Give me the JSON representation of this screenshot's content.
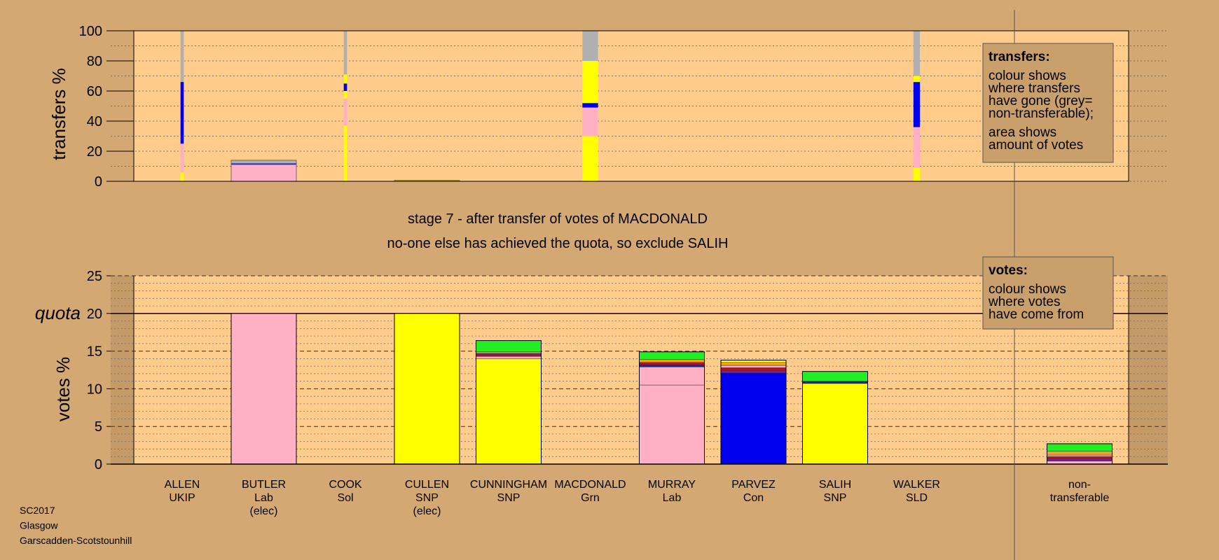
{
  "chart_data": [
    {
      "type": "bar",
      "id": "transfers",
      "ylabel": "transfers %",
      "ylim": [
        0,
        100
      ],
      "yticks": [
        0,
        20,
        40,
        60,
        80,
        100
      ],
      "grid": true,
      "note": {
        "title": "transfers:",
        "lines": [
          "colour shows",
          "where transfers",
          "have gone (grey=",
          "non-transferable);",
          "area shows",
          "amount of votes"
        ]
      },
      "columns": [
        {
          "candidate": "ALLEN",
          "relative_width": 0.05,
          "segments": [
            {
              "color": "#ffff00",
              "from": 0,
              "to": 6
            },
            {
              "color": "#ffb0c4",
              "from": 6,
              "to": 25
            },
            {
              "color": "#0000ee",
              "from": 25,
              "to": 66
            },
            {
              "color": "#b0b0b0",
              "from": 66,
              "to": 100
            }
          ]
        },
        {
          "candidate": "BUTLER",
          "relative_width": 1,
          "segments": [
            {
              "color": "#ffb0c4",
              "from": 0,
              "to": 11
            },
            {
              "color": "#2a2ab0",
              "from": 11,
              "to": 12
            },
            {
              "color": "#b0b0b0",
              "from": 12,
              "to": 14
            }
          ]
        },
        {
          "candidate": "COOK",
          "relative_width": 0.05,
          "segments": [
            {
              "color": "#ffff00",
              "from": 0,
              "to": 37
            },
            {
              "color": "#ffb0c4",
              "from": 37,
              "to": 55
            },
            {
              "color": "#ffff00",
              "from": 55,
              "to": 60
            },
            {
              "color": "#0000ee",
              "from": 60,
              "to": 65
            },
            {
              "color": "#ffff00",
              "from": 65,
              "to": 71
            },
            {
              "color": "#b0b0b0",
              "from": 71,
              "to": 100
            }
          ]
        },
        {
          "candidate": "CULLEN",
          "relative_width": 1,
          "segments": [
            {
              "color": "#d8c000",
              "from": 0,
              "to": 0.6
            }
          ]
        },
        {
          "candidate": "MACDONALD",
          "relative_width": 0.24,
          "segments": [
            {
              "color": "#ffff00",
              "from": 0,
              "to": 30
            },
            {
              "color": "#ffb0c4",
              "from": 30,
              "to": 49
            },
            {
              "color": "#0000ee",
              "from": 49,
              "to": 52
            },
            {
              "color": "#ffff00",
              "from": 52,
              "to": 80
            },
            {
              "color": "#b0b0b0",
              "from": 80,
              "to": 100
            }
          ]
        },
        {
          "candidate": "WALKER",
          "relative_width": 0.1,
          "segments": [
            {
              "color": "#ffff00",
              "from": 0,
              "to": 9
            },
            {
              "color": "#ffb0c4",
              "from": 9,
              "to": 36
            },
            {
              "color": "#0000ee",
              "from": 36,
              "to": 66
            },
            {
              "color": "#ffff00",
              "from": 66,
              "to": 70
            },
            {
              "color": "#b0b0b0",
              "from": 70,
              "to": 100
            }
          ]
        }
      ]
    },
    {
      "type": "bar",
      "id": "votes",
      "ylabel": "votes %",
      "ylim": [
        0,
        25
      ],
      "yticks": [
        0,
        5,
        10,
        15,
        20,
        25
      ],
      "quota": 20,
      "quota_label": "quota",
      "grid": true,
      "note": {
        "title": "votes:",
        "lines": [
          "colour shows",
          "where votes",
          "have come from"
        ]
      },
      "categories": [
        [
          "ALLEN",
          "UKIP"
        ],
        [
          "BUTLER",
          "Lab",
          "(elec)"
        ],
        [
          "COOK",
          "Sol"
        ],
        [
          "CULLEN",
          "SNP",
          "(elec)"
        ],
        [
          "CUNNINGHAM",
          "SNP"
        ],
        [
          "MACDONALD",
          "Grn"
        ],
        [
          "MURRAY",
          "Lab"
        ],
        [
          "PARVEZ",
          "Con"
        ],
        [
          "SALIH",
          "SNP"
        ],
        [
          "WALKER",
          "SLD"
        ],
        [
          "non-",
          "transferable"
        ]
      ],
      "bars": [
        {
          "segments": []
        },
        {
          "segments": [
            {
              "color": "#ffb0c4",
              "from": 0,
              "to": 20
            }
          ]
        },
        {
          "segments": []
        },
        {
          "segments": [
            {
              "color": "#ffff00",
              "from": 0,
              "to": 20
            }
          ]
        },
        {
          "segments": [
            {
              "color": "#ffff00",
              "from": 0,
              "to": 14.0
            },
            {
              "color": "#ffb0c4",
              "from": 14.0,
              "to": 14.3
            },
            {
              "color": "#b01818",
              "from": 14.3,
              "to": 14.5
            },
            {
              "color": "#7020a0",
              "from": 14.5,
              "to": 14.7
            },
            {
              "color": "#f0a020",
              "from": 14.7,
              "to": 14.9
            },
            {
              "color": "#22ee22",
              "from": 14.9,
              "to": 16.4
            }
          ]
        },
        {
          "segments": []
        },
        {
          "segments": [
            {
              "color": "#ffb0c4",
              "from": 0,
              "to": 10.5
            },
            {
              "color": "#ffb0c4",
              "from": 10.5,
              "to": 12.9
            },
            {
              "color": "#2020b0",
              "from": 12.9,
              "to": 13.2
            },
            {
              "color": "#b01818",
              "from": 13.2,
              "to": 13.5
            },
            {
              "color": "#f0a020",
              "from": 13.5,
              "to": 13.9
            },
            {
              "color": "#22ee22",
              "from": 13.9,
              "to": 14.9
            }
          ]
        },
        {
          "segments": [
            {
              "color": "#0000ee",
              "from": 0,
              "to": 12.1
            },
            {
              "color": "#7020a0",
              "from": 12.1,
              "to": 12.4
            },
            {
              "color": "#b01818",
              "from": 12.4,
              "to": 12.8
            },
            {
              "color": "#ffb0c4",
              "from": 12.8,
              "to": 13.1
            },
            {
              "color": "#f0a020",
              "from": 13.1,
              "to": 13.5
            },
            {
              "color": "#ffff00",
              "from": 13.5,
              "to": 13.8
            }
          ]
        },
        {
          "segments": [
            {
              "color": "#ffff00",
              "from": 0,
              "to": 10.7
            },
            {
              "color": "#2020b0",
              "from": 10.7,
              "to": 11.0
            },
            {
              "color": "#22ee22",
              "from": 11.0,
              "to": 12.3
            }
          ]
        },
        {
          "segments": []
        },
        {
          "segments": [
            {
              "color": "#ffb0c4",
              "from": 0,
              "to": 0.4
            },
            {
              "color": "#7020a0",
              "from": 0.4,
              "to": 0.7
            },
            {
              "color": "#b01818",
              "from": 0.7,
              "to": 1.0
            },
            {
              "color": "#ffb0c4",
              "from": 1.0,
              "to": 1.2
            },
            {
              "color": "#f0a020",
              "from": 1.2,
              "to": 1.7
            },
            {
              "color": "#22ee22",
              "from": 1.7,
              "to": 2.7
            }
          ]
        }
      ]
    }
  ],
  "stage": {
    "line1": "stage 7 - after transfer of votes of MACDONALD",
    "line2": "no-one else has achieved the quota, so exclude SALIH"
  },
  "footer": [
    "SC2017",
    "Glasgow",
    "Garscadden-Scotstounhill"
  ],
  "colors": {
    "background": "#d4a872",
    "plot": "#ffcc8c",
    "shade": "#c49a68",
    "box": "#c9a06c"
  }
}
